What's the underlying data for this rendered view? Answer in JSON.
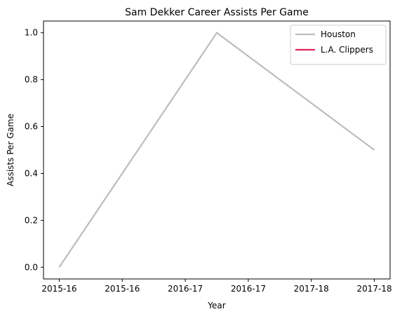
{
  "chart_data": {
    "type": "line",
    "title": "Sam Dekker Career Assists Per Game",
    "xlabel": "Year",
    "ylabel": "Assists Per Game",
    "x_tick_labels": [
      "2015-16",
      "2015-16",
      "2016-17",
      "2016-17",
      "2017-18",
      "2017-18"
    ],
    "x_tick_values": [
      0.0,
      0.4,
      0.8,
      1.2,
      1.6,
      2.0
    ],
    "xlim": [
      -0.1,
      2.1
    ],
    "y_tick_labels": [
      "0.0",
      "0.2",
      "0.4",
      "0.6",
      "0.8",
      "1.0"
    ],
    "y_tick_values": [
      0.0,
      0.2,
      0.4,
      0.6,
      0.8,
      1.0
    ],
    "ylim": [
      -0.05,
      1.05
    ],
    "grid": false,
    "legend_position": "top-right",
    "series": [
      {
        "name": "Houston",
        "color": "#bdbdbd",
        "x": [
          0,
          1,
          2
        ],
        "x_labels": [
          "2015-16",
          "2016-17",
          "2017-18"
        ],
        "values": [
          0.0,
          1.0,
          0.5
        ]
      },
      {
        "name": "L.A. Clippers",
        "color": "#e0245e",
        "x": [],
        "x_labels": [],
        "values": []
      }
    ]
  }
}
